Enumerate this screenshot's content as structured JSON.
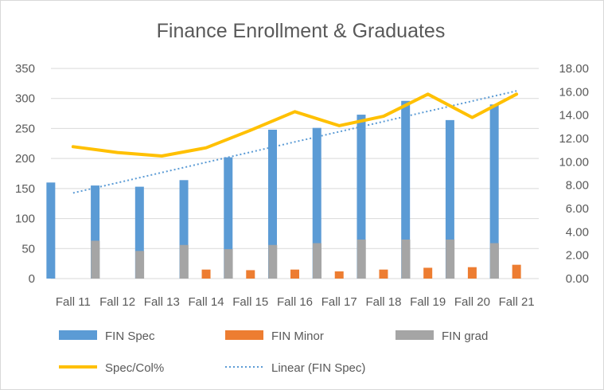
{
  "chart_data": {
    "type": "bar",
    "title": "Finance Enrollment & Graduates",
    "categories": [
      "Fall 11",
      "Fall 12",
      "Fall 13",
      "Fall 14",
      "Fall 15",
      "Fall 16",
      "Fall 17",
      "Fall 18",
      "Fall 19",
      "Fall 20",
      "Fall 21"
    ],
    "series": [
      {
        "name": "FIN Spec",
        "type": "bar",
        "axis": "left",
        "color": "#5b9bd5",
        "values": [
          160,
          155,
          153,
          164,
          202,
          248,
          251,
          273,
          296,
          264,
          290
        ]
      },
      {
        "name": "FIN Minor",
        "type": "bar",
        "axis": "left",
        "color": "#ed7d31",
        "values": [
          0,
          0,
          0,
          15,
          14,
          15,
          12,
          15,
          18,
          19,
          23
        ]
      },
      {
        "name": "FIN grad",
        "type": "bar",
        "axis": "left",
        "color": "#a5a5a5",
        "values": [
          63,
          46,
          56,
          49,
          56,
          59,
          65,
          65,
          65,
          59,
          0
        ]
      },
      {
        "name": "Spec/Col%",
        "type": "line",
        "axis": "right",
        "color": "#ffc000",
        "values": [
          11.3,
          10.8,
          10.5,
          11.2,
          12.7,
          14.3,
          13.1,
          13.9,
          15.8,
          13.8,
          15.8
        ]
      },
      {
        "name": "Linear (FIN Spec)",
        "type": "trendline",
        "axis": "left",
        "color": "#5b9bd5",
        "values": [
          142.6,
          159.6,
          176.6,
          193.6,
          210.6,
          227.6,
          244.6,
          261.6,
          278.6,
          295.6,
          312.6
        ]
      }
    ],
    "ylim": [
      0,
      350
    ],
    "yticks": [
      "0",
      "50",
      "100",
      "150",
      "200",
      "250",
      "300",
      "350"
    ],
    "y2lim": [
      0,
      18
    ],
    "y2ticks": [
      "0.00",
      "2.00",
      "4.00",
      "6.00",
      "8.00",
      "10.00",
      "12.00",
      "14.00",
      "16.00",
      "18.00"
    ],
    "legend": [
      "FIN Spec",
      "FIN Minor",
      "FIN grad",
      "Spec/Col%",
      "Linear (FIN Spec)"
    ],
    "legend_position": "bottom",
    "grid": true
  }
}
